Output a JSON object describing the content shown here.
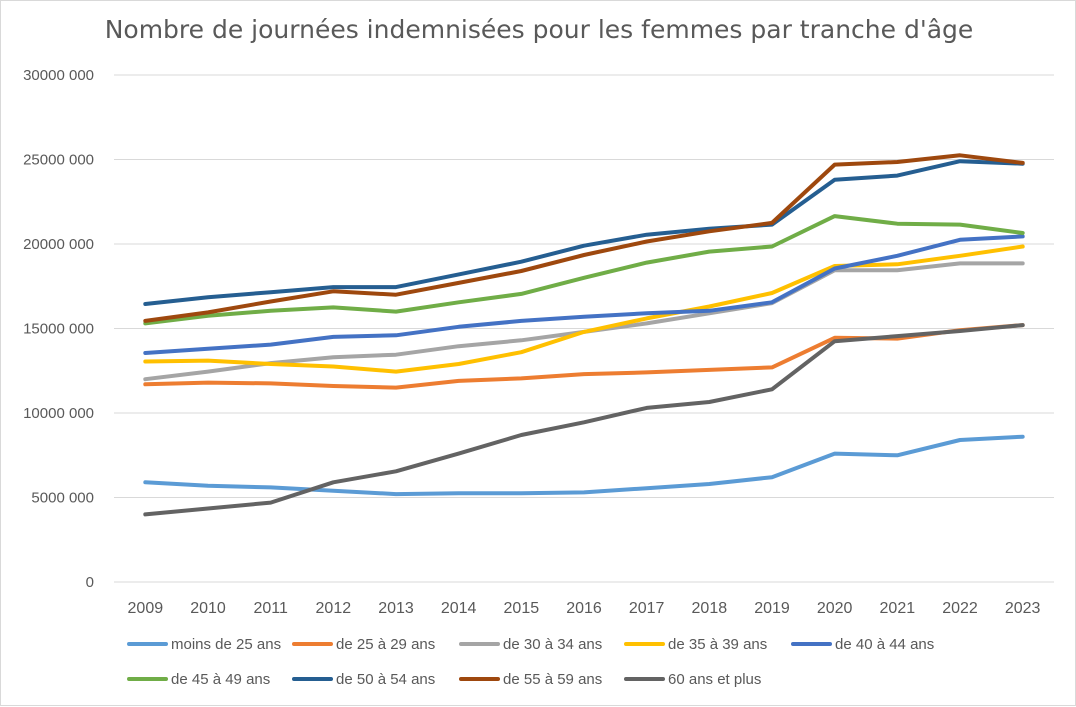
{
  "chart_data": {
    "type": "line",
    "title": "Nombre de journées indemnisées pour les femmes par tranche d'âge",
    "xlabel": "",
    "ylabel": "",
    "categories": [
      "2009",
      "2010",
      "2011",
      "2012",
      "2013",
      "2014",
      "2015",
      "2016",
      "2017",
      "2018",
      "2019",
      "2020",
      "2021",
      "2022",
      "2023"
    ],
    "ylim": [
      0,
      30000000
    ],
    "yticks": [
      0,
      5000000,
      10000000,
      15000000,
      20000000,
      25000000,
      30000000
    ],
    "ytick_labels": [
      "0",
      "5000 000",
      "10000 000",
      "15000 000",
      "20000 000",
      "25000 000",
      "30000 000"
    ],
    "grid": true,
    "legend_position": "bottom",
    "series": [
      {
        "name": "moins de 25 ans",
        "color": "#5b9bd5",
        "values": [
          5900000,
          5700000,
          5600000,
          5400000,
          5200000,
          5250000,
          5250000,
          5300000,
          5550000,
          5800000,
          6200000,
          7600000,
          7500000,
          8400000,
          8600000
        ]
      },
      {
        "name": "de 25 à 29 ans",
        "color": "#ed7d31",
        "values": [
          11700000,
          11800000,
          11750000,
          11600000,
          11500000,
          11900000,
          12050000,
          12300000,
          12400000,
          12550000,
          12700000,
          14450000,
          14400000,
          14900000,
          15200000
        ]
      },
      {
        "name": "de 30 à 34 ans",
        "color": "#a5a5a5",
        "values": [
          12000000,
          12450000,
          12950000,
          13300000,
          13450000,
          13950000,
          14300000,
          14800000,
          15300000,
          15900000,
          16500000,
          18450000,
          18450000,
          18850000,
          18850000
        ]
      },
      {
        "name": "de 35 à 39 ans",
        "color": "#ffc000",
        "values": [
          13050000,
          13100000,
          12900000,
          12750000,
          12450000,
          12900000,
          13600000,
          14800000,
          15600000,
          16300000,
          17100000,
          18700000,
          18800000,
          19300000,
          19850000
        ]
      },
      {
        "name": "de 40 à 44 ans",
        "color": "#4472c4",
        "values": [
          13550000,
          13800000,
          14050000,
          14500000,
          14600000,
          15100000,
          15450000,
          15700000,
          15900000,
          16050000,
          16550000,
          18550000,
          19300000,
          20250000,
          20450000
        ]
      },
      {
        "name": "de 45 à 49 ans",
        "color": "#70ad47",
        "values": [
          15300000,
          15750000,
          16050000,
          16250000,
          16000000,
          16550000,
          17050000,
          18000000,
          18900000,
          19550000,
          19850000,
          21650000,
          21200000,
          21150000,
          20650000
        ]
      },
      {
        "name": "de 50 à 54 ans",
        "color": "#255e91",
        "values": [
          16450000,
          16850000,
          17150000,
          17450000,
          17450000,
          18200000,
          18950000,
          19900000,
          20550000,
          20900000,
          21150000,
          23800000,
          24050000,
          24900000,
          24750000
        ]
      },
      {
        "name": "de 55 à 59 ans",
        "color": "#9e480e",
        "values": [
          15450000,
          15950000,
          16600000,
          17200000,
          17000000,
          17700000,
          18400000,
          19350000,
          20150000,
          20750000,
          21250000,
          24700000,
          24850000,
          25250000,
          24800000
        ]
      },
      {
        "name": "60 ans et plus",
        "color": "#636363",
        "values": [
          4000000,
          4350000,
          4700000,
          5900000,
          6550000,
          7600000,
          8700000,
          9450000,
          10300000,
          10650000,
          11400000,
          14250000,
          14550000,
          14850000,
          15200000
        ]
      }
    ]
  }
}
